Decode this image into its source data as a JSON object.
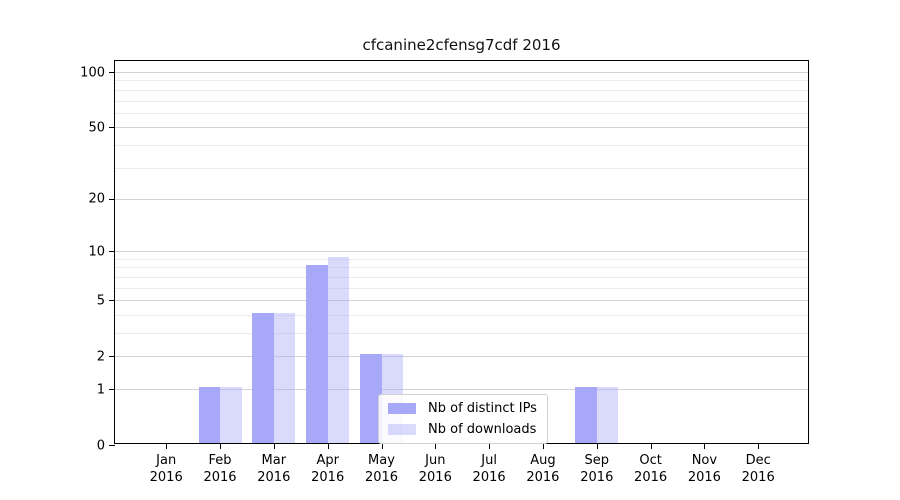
{
  "figure": {
    "background": "#ffffff"
  },
  "chart_data": {
    "type": "bar",
    "title": "cfcanine2cfensg7cdf 2016",
    "year": "2016",
    "categories": [
      "Jan",
      "Feb",
      "Mar",
      "Apr",
      "May",
      "Jun",
      "Jul",
      "Aug",
      "Sep",
      "Oct",
      "Nov",
      "Dec"
    ],
    "series": [
      {
        "name": "Nb of distinct IPs",
        "color": "#a8a8f8",
        "fill": "#a8a8f8",
        "values": [
          0,
          1,
          4,
          8,
          2,
          0,
          0,
          0,
          1,
          0,
          0,
          0
        ]
      },
      {
        "name": "Nb of downloads",
        "color": "#dcdcf9",
        "fill": "rgba(168,168,248,0.42)",
        "values": [
          0,
          1,
          4,
          9,
          2,
          0,
          0,
          0,
          1,
          0,
          0,
          0
        ]
      }
    ],
    "y_axis": {
      "scale": "log1p",
      "major_ticks": [
        0,
        1,
        2,
        5,
        10,
        20,
        50,
        100
      ],
      "minor_ticks": [
        3,
        4,
        6,
        7,
        8,
        9,
        30,
        40,
        60,
        70,
        80,
        90
      ],
      "max_tick": 100
    },
    "x_axis": {
      "tick_label_year": "2016"
    },
    "legend": {
      "position": "lower-center"
    },
    "grid": true,
    "colors": {
      "grid_major": "#d2d2d2",
      "grid_minor": "#ebebeb",
      "spine": "#000000",
      "text": "#000000"
    }
  }
}
